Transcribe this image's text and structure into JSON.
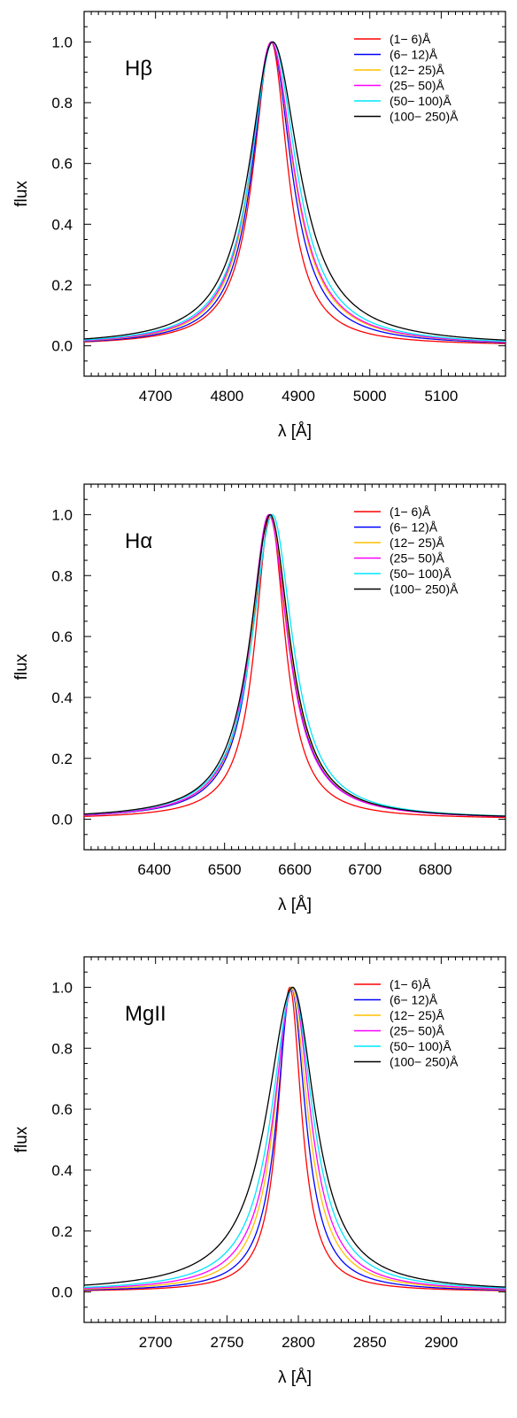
{
  "chart_data": [
    {
      "type": "line",
      "panel_label": "Hβ",
      "xlabel": "λ [Å]",
      "ylabel": "flux",
      "xlim": [
        4600,
        5190
      ],
      "ylim": [
        -0.1,
        1.1
      ],
      "xticks_major": [
        4700,
        4800,
        4900,
        5000,
        5100
      ],
      "yticks_major": [
        0.0,
        0.2,
        0.4,
        0.6,
        0.8,
        1.0
      ],
      "line_center": 4862,
      "legend_position": "top-right",
      "series": [
        {
          "name": "(1− 6)Å",
          "color": "#ff0000",
          "center": 4862,
          "hwhm_left": 30,
          "hwhm_right": 28
        },
        {
          "name": "(6− 12)Å",
          "color": "#0000ff",
          "center": 4862,
          "hwhm_left": 32,
          "hwhm_right": 34
        },
        {
          "name": "(12− 25)Å",
          "color": "#ffc000",
          "center": 4862,
          "hwhm_left": 34,
          "hwhm_right": 37
        },
        {
          "name": "(25− 50)Å",
          "color": "#ff00ff",
          "center": 4862,
          "hwhm_left": 35,
          "hwhm_right": 38
        },
        {
          "name": "(50− 100)Å",
          "color": "#00e5ff",
          "center": 4864,
          "hwhm_left": 37,
          "hwhm_right": 40
        },
        {
          "name": "(100− 250)Å",
          "color": "#000000",
          "center": 4864,
          "hwhm_left": 40,
          "hwhm_right": 45
        }
      ]
    },
    {
      "type": "line",
      "panel_label": "Hα",
      "xlabel": "λ [Å]",
      "ylabel": "flux",
      "xlim": [
        6300,
        6900
      ],
      "ylim": [
        -0.1,
        1.1
      ],
      "xticks_major": [
        6400,
        6500,
        6600,
        6700,
        6800
      ],
      "yticks_major": [
        0.0,
        0.2,
        0.4,
        0.6,
        0.8,
        1.0
      ],
      "line_center": 6564,
      "legend_position": "top-right",
      "series": [
        {
          "name": "(1− 6)Å",
          "color": "#ff0000",
          "center": 6565,
          "hwhm_left": 26,
          "hwhm_right": 26
        },
        {
          "name": "(6− 12)Å",
          "color": "#0000ff",
          "center": 6564,
          "hwhm_left": 31,
          "hwhm_right": 33
        },
        {
          "name": "(12− 25)Å",
          "color": "#ffc000",
          "center": 6564,
          "hwhm_left": 32,
          "hwhm_right": 34
        },
        {
          "name": "(25− 50)Å",
          "color": "#ff00ff",
          "center": 6563,
          "hwhm_left": 32,
          "hwhm_right": 33
        },
        {
          "name": "(50− 100)Å",
          "color": "#00e5ff",
          "center": 6568,
          "hwhm_left": 35,
          "hwhm_right": 35
        },
        {
          "name": "(100− 250)Å",
          "color": "#000000",
          "center": 6565,
          "hwhm_left": 35,
          "hwhm_right": 34
        }
      ]
    },
    {
      "type": "line",
      "panel_label": "MgII",
      "xlabel": "λ [Å]",
      "ylabel": "flux",
      "xlim": [
        2650,
        2945
      ],
      "ylim": [
        -0.1,
        1.1
      ],
      "xticks_major": [
        2700,
        2750,
        2800,
        2850,
        2900
      ],
      "yticks_major": [
        0.0,
        0.2,
        0.4,
        0.6,
        0.8,
        1.0
      ],
      "line_center": 2796,
      "legend_position": "top-right",
      "series": [
        {
          "name": "(1− 6)Å",
          "color": "#ff0000",
          "center": 2794,
          "hwhm_left": 10,
          "hwhm_right": 10
        },
        {
          "name": "(6− 12)Å",
          "color": "#0000ff",
          "center": 2795,
          "hwhm_left": 12,
          "hwhm_right": 12
        },
        {
          "name": "(12− 25)Å",
          "color": "#ffc000",
          "center": 2795,
          "hwhm_left": 14,
          "hwhm_right": 14
        },
        {
          "name": "(25− 50)Å",
          "color": "#ff00ff",
          "center": 2796,
          "hwhm_left": 16,
          "hwhm_right": 15
        },
        {
          "name": "(50− 100)Å",
          "color": "#00e5ff",
          "center": 2796,
          "hwhm_left": 18,
          "hwhm_right": 17
        },
        {
          "name": "(100− 250)Å",
          "color": "#000000",
          "center": 2796,
          "hwhm_left": 22,
          "hwhm_right": 19
        }
      ]
    }
  ]
}
